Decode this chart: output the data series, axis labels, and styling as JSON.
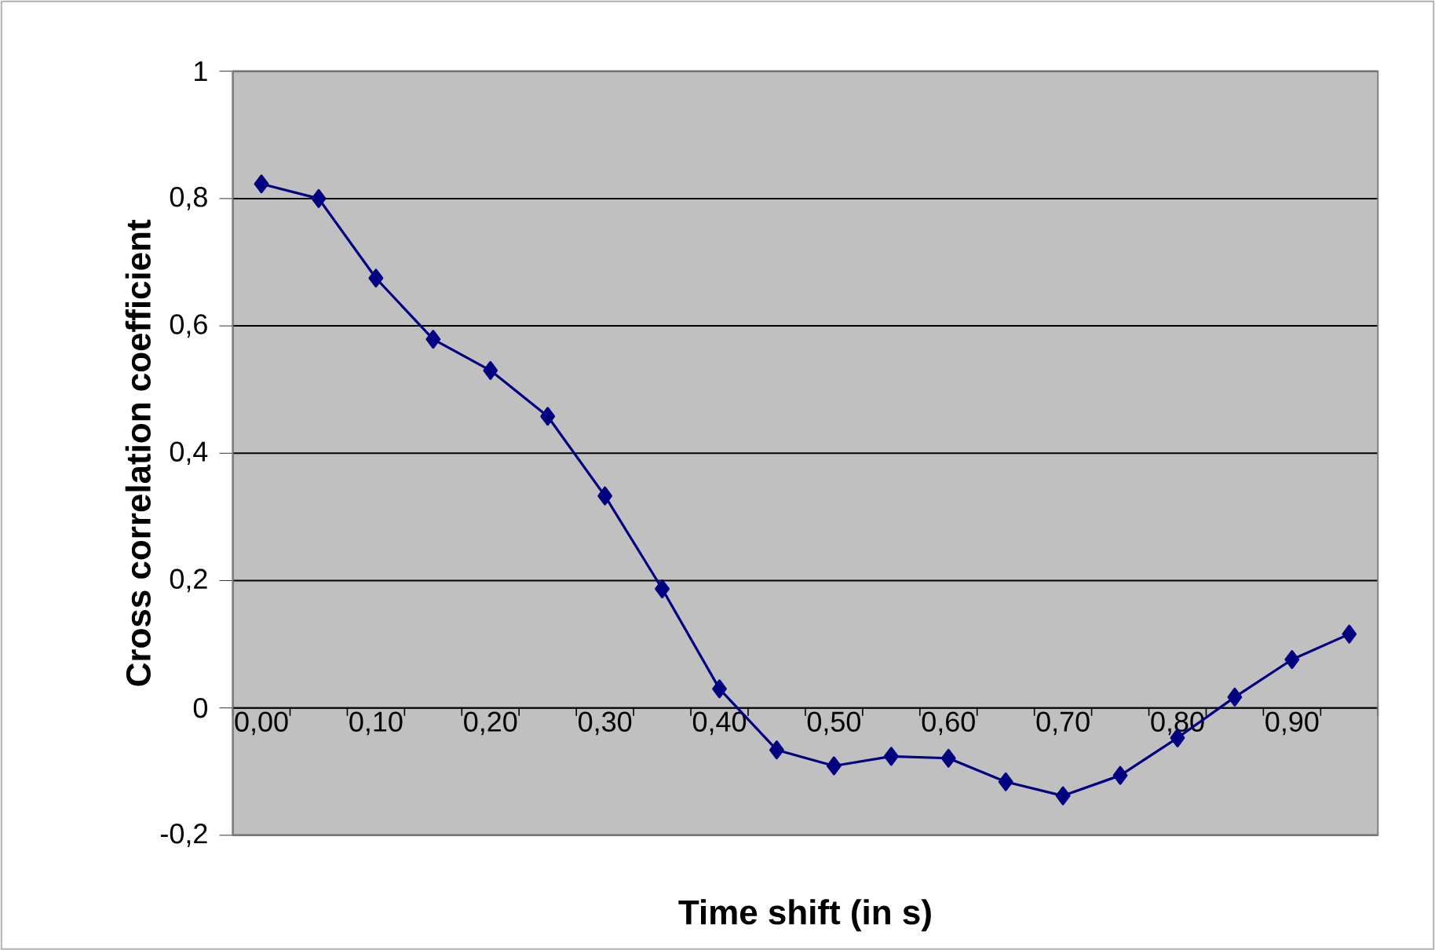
{
  "chart_data": {
    "type": "line",
    "xlabel": "Time shift (in s)",
    "ylabel": "Cross correlation coefficient",
    "categories": [
      "0,00",
      null,
      "0,10",
      null,
      "0,20",
      null,
      "0,30",
      null,
      "0,40",
      null,
      "0,50",
      null,
      "0,60",
      null,
      "0,70",
      null,
      "0,80",
      null,
      "0,90",
      null
    ],
    "series": [
      {
        "color": "#000080",
        "values": [
          0.823,
          0.8,
          0.675,
          0.579,
          0.53,
          0.458,
          0.333,
          0.187,
          0.03,
          -0.066,
          -0.091,
          -0.076,
          -0.079,
          -0.116,
          -0.138,
          -0.106,
          -0.047,
          0.017,
          0.076,
          0.116
        ]
      }
    ],
    "ylim": [
      -0.2,
      1
    ],
    "yticks": [
      {
        "value": -0.2,
        "label": "-0,2"
      },
      0,
      {
        "value": 0.2,
        "label": "0,2"
      },
      {
        "value": 0.4,
        "label": "0,4"
      },
      {
        "value": 0.6,
        "label": "0,6"
      },
      {
        "value": 0.8,
        "label": "0,8"
      },
      1
    ],
    "grid": "y",
    "marker": "diamond",
    "line_style": "solid"
  }
}
